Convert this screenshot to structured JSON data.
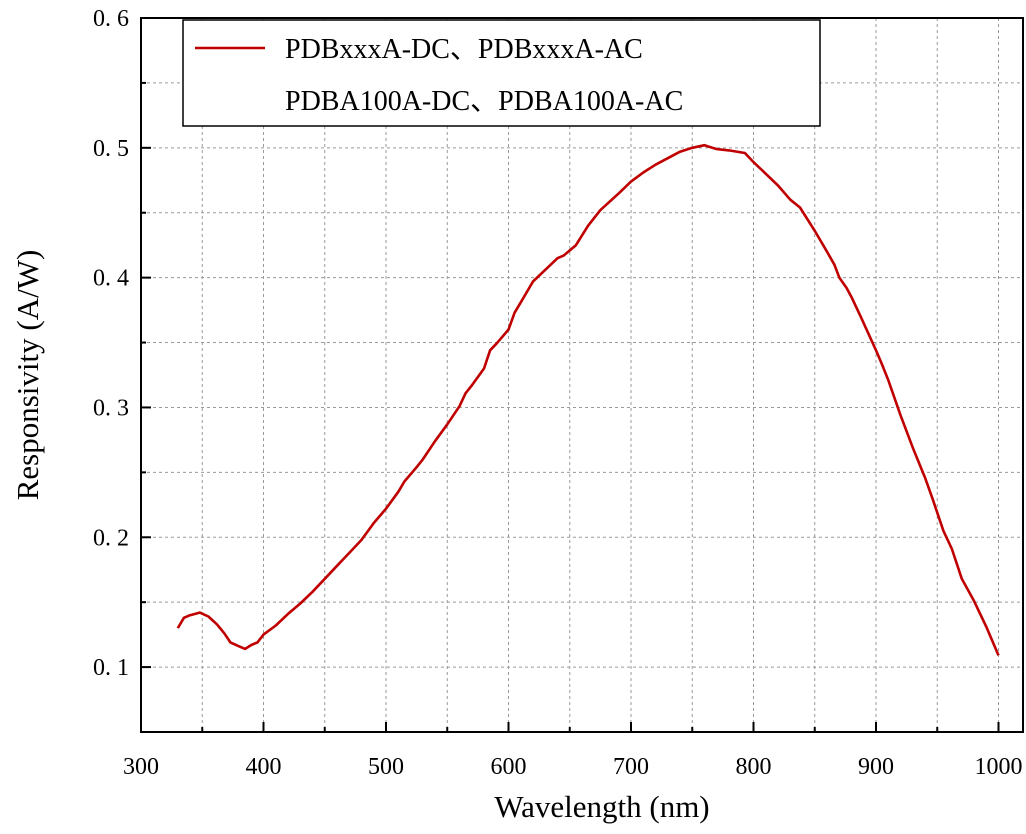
{
  "chart_data": {
    "type": "line",
    "title": "",
    "xlabel": "Wavelength (nm)",
    "ylabel": "Responsivity (A/W)",
    "xlim": [
      300,
      1020
    ],
    "ylim": [
      0.05,
      0.6
    ],
    "xticks": [
      300,
      400,
      500,
      600,
      700,
      800,
      900,
      1000
    ],
    "xtick_labels": [
      "300",
      "400",
      "500",
      "600",
      "700",
      "800",
      "900",
      "1000"
    ],
    "yticks": [
      0.1,
      0.2,
      0.3,
      0.4,
      0.5,
      0.6
    ],
    "ytick_labels": [
      "0. 1",
      "0. 2",
      "0. 3",
      "0. 4",
      "0. 5",
      "0. 6"
    ],
    "grid": true,
    "legend_position": "top-left",
    "series": [
      {
        "name": "PDBxxxA-DC、PDBxxxA-AC",
        "name_line2": "PDBA100A-DC、PDBA100A-AC",
        "color": "#c00000",
        "x": [
          330,
          335,
          340,
          348,
          355,
          362,
          368,
          373,
          380,
          385,
          390,
          395,
          400,
          410,
          420,
          430,
          440,
          450,
          460,
          470,
          480,
          490,
          500,
          510,
          515,
          525,
          530,
          540,
          550,
          560,
          565,
          570,
          580,
          585,
          590,
          600,
          605,
          610,
          620,
          630,
          640,
          645,
          655,
          665,
          675,
          690,
          700,
          710,
          720,
          730,
          740,
          750,
          760,
          763,
          770,
          780,
          793,
          800,
          810,
          820,
          830,
          838,
          850,
          860,
          866,
          870,
          876,
          880,
          888,
          900,
          905,
          910,
          920,
          930,
          940,
          946,
          955,
          962,
          970,
          980,
          990,
          1000
        ],
        "y": [
          0.13,
          0.138,
          0.14,
          0.142,
          0.139,
          0.133,
          0.126,
          0.119,
          0.116,
          0.114,
          0.117,
          0.119,
          0.125,
          0.132,
          0.141,
          0.149,
          0.158,
          0.168,
          0.178,
          0.188,
          0.198,
          0.211,
          0.222,
          0.235,
          0.243,
          0.254,
          0.26,
          0.274,
          0.287,
          0.301,
          0.311,
          0.317,
          0.33,
          0.344,
          0.349,
          0.36,
          0.373,
          0.381,
          0.397,
          0.406,
          0.415,
          0.417,
          0.425,
          0.44,
          0.452,
          0.465,
          0.474,
          0.481,
          0.487,
          0.492,
          0.497,
          0.5,
          0.502,
          0.501,
          0.499,
          0.498,
          0.496,
          0.489,
          0.48,
          0.471,
          0.46,
          0.454,
          0.436,
          0.42,
          0.41,
          0.4,
          0.392,
          0.385,
          0.369,
          0.344,
          0.333,
          0.321,
          0.294,
          0.269,
          0.246,
          0.23,
          0.205,
          0.191,
          0.168,
          0.151,
          0.131,
          0.109
        ]
      }
    ]
  }
}
